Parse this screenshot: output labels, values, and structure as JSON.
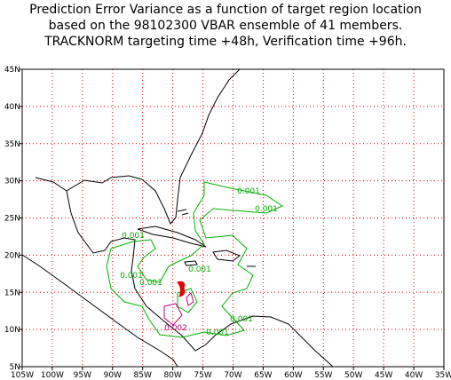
{
  "title": [
    "Prediction Error Variance as a function of target region location",
    "based on the 98102300 VBAR ensemble of 41 members.",
    "TRACKNORM targeting time +48h, Verification time +96h."
  ],
  "lon_labels": [
    "105W",
    "100W",
    "95W",
    "90W",
    "85W",
    "80W",
    "75W",
    "70W",
    "65W",
    "60W",
    "55W",
    "50W",
    "45W",
    "40W",
    "35W"
  ],
  "lat_labels": [
    "45N",
    "40N",
    "35N",
    "30N",
    "25N",
    "20N",
    "15N",
    "10N",
    "5N"
  ],
  "contour_labels": [
    "0.001",
    "0.001",
    "0.001",
    "0.001",
    "0.001",
    "0.001",
    "0.001",
    "0.001",
    "0.002"
  ]
}
